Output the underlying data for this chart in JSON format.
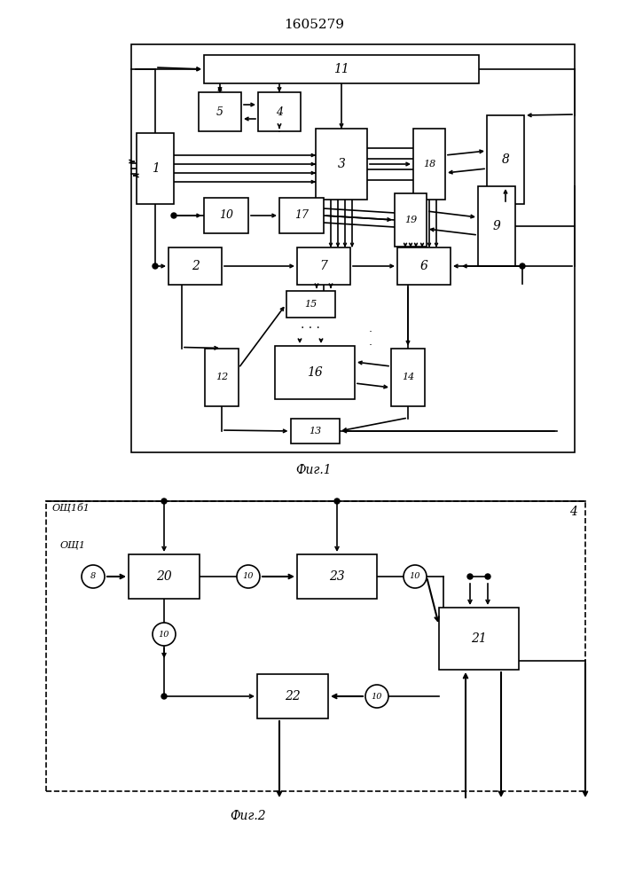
{
  "title": "1605279",
  "fig1_label": "Фиг.1",
  "fig2_label": "Фиг.2",
  "from11": "ОЩ1б1",
  "from1": "ОЩ1"
}
